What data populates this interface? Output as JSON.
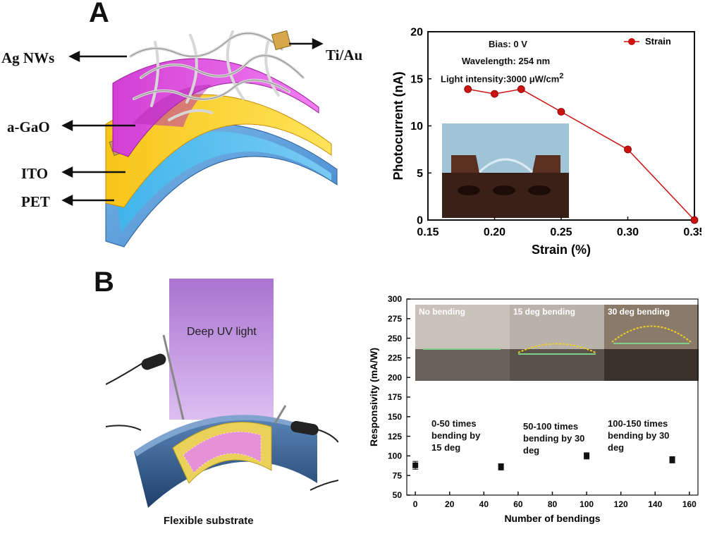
{
  "panels": {
    "a": "A",
    "b": "B"
  },
  "schematic_a": {
    "layers": [
      "Ag NWs",
      "a-GaO",
      "ITO",
      "PET"
    ],
    "contact": "Ti/Au"
  },
  "schematic_b": {
    "light_label": "Deep UV light",
    "substrate_label": "Flexible substrate"
  },
  "chart_data": [
    {
      "type": "line",
      "title": "",
      "xlabel": "Strain (%)",
      "ylabel": "Photocurrent (nA)",
      "xlim": [
        0.15,
        0.35
      ],
      "ylim": [
        0,
        20
      ],
      "xticks": [
        "0.15",
        "0.20",
        "0.25",
        "0.30",
        "0.35"
      ],
      "yticks": [
        "0",
        "5",
        "10",
        "15",
        "20"
      ],
      "grid": false,
      "legend": "top-right",
      "series": [
        {
          "name": "Strain",
          "color": "#cc1111",
          "x": [
            0.18,
            0.2,
            0.22,
            0.25,
            0.3,
            0.35
          ],
          "y": [
            13.9,
            13.4,
            13.9,
            11.5,
            7.5,
            0.0
          ]
        }
      ],
      "annotations": {
        "bias": "Bias: 0 V",
        "wavelength": "Wavelength: 254 nm",
        "intensity": "Light intensity:3000 μW/cm",
        "intensity_sup": "2"
      }
    },
    {
      "type": "scatter",
      "title": "",
      "xlabel": "Number of bendings",
      "ylabel": "Responsivity (mA/W)",
      "xlim": [
        -5,
        165
      ],
      "ylim": [
        50,
        300
      ],
      "xticks": [
        "0",
        "20",
        "40",
        "60",
        "80",
        "100",
        "120",
        "140",
        "160"
      ],
      "yticks": [
        "50",
        "75",
        "100",
        "125",
        "150",
        "175",
        "200",
        "225",
        "250",
        "275",
        "300"
      ],
      "grid": false,
      "series": [
        {
          "color": "#111111",
          "x": [
            0,
            50,
            100,
            150
          ],
          "y": [
            88,
            86,
            100,
            95
          ],
          "err": [
            5,
            4,
            4,
            4
          ]
        }
      ],
      "photo_labels": [
        "No bending",
        "15 deg bending",
        "30 deg bending"
      ],
      "notes": [
        [
          "0-50 times",
          "bending by",
          "15 deg"
        ],
        [
          "50-100 times",
          "bending by 30",
          "deg"
        ],
        [
          "100-150 times",
          "bending by 30",
          "deg"
        ]
      ]
    }
  ]
}
